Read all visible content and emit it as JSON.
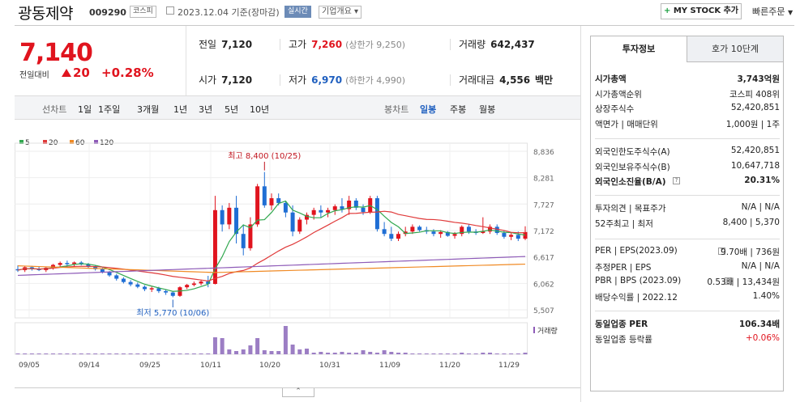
{
  "header": {
    "name": "광동제약",
    "code": "009290",
    "market": "코스피",
    "date": "2023.12.04 기준(장마감)",
    "live_label": "실시간",
    "company_info": "기업개요",
    "mystock": "MY STOCK 추가",
    "quick_order": "빠른주문"
  },
  "price": {
    "current": "7,140",
    "change_label": "전일대비",
    "change": "20",
    "change_pct": "+0.28%"
  },
  "quote": {
    "prev_label": "전일",
    "prev": "7,120",
    "high_label": "고가",
    "high": "7,260",
    "upper": "(상한가 9,250)",
    "volume_label": "거래량",
    "volume": "642,437",
    "open_label": "시가",
    "open": "7,120",
    "low_label": "저가",
    "low": "6,970",
    "lower": "(하한가 4,990)",
    "amount_label": "거래대금",
    "amount": "4,556",
    "amount_unit": "백만"
  },
  "periods": {
    "line": "선차트",
    "items": [
      "1일",
      "1주일",
      "3개월",
      "1년",
      "3년",
      "5년",
      "10년"
    ],
    "candle": "봉차트",
    "candle_items": [
      "일봉",
      "주봉",
      "월봉"
    ]
  },
  "colors": {
    "up": "#e0141e",
    "down": "#1f6ed4",
    "ma5": "#31a84f",
    "ma20": "#e03a3a",
    "ma60": "#f08a24",
    "ma120": "#8e5bb8"
  },
  "chart_data": {
    "type": "candlestick",
    "legend": [
      "5",
      "20",
      "60",
      "120"
    ],
    "y_ticks": [
      "8,836",
      "8,281",
      "7,727",
      "7,172",
      "6,617",
      "6,062",
      "5,507"
    ],
    "ylim": [
      5507,
      8836
    ],
    "x_ticks": [
      "09/05",
      "09/14",
      "09/25",
      "10/11",
      "10/20",
      "10/31",
      "11/09",
      "11/20",
      "11/29"
    ],
    "max_label": "최고 8,400 (10/25)",
    "min_label": "최저 5,770 (10/06)",
    "volume_label": "거래량"
  },
  "panel": {
    "tab1": "투자정보",
    "tab2": "호가 10단계",
    "rows1": [
      {
        "l": "시가총액",
        "r": "3,743억원",
        "bold": true
      },
      {
        "l": "시가총액순위",
        "r": "코스피 408위"
      },
      {
        "l": "상장주식수",
        "r": "52,420,851"
      },
      {
        "l": "액면가 | 매매단위",
        "r": "1,000원 | 1주"
      }
    ],
    "rows2": [
      {
        "l": "외국인한도주식수(A)",
        "r": "52,420,851"
      },
      {
        "l": "외국인보유주식수(B)",
        "r": "10,647,718"
      },
      {
        "l": "외국인소진율(B/A)",
        "r": "20.31%",
        "bold": true
      }
    ],
    "rows3": [
      {
        "l": "투자의견 | 목표주가",
        "r": "N/A | N/A"
      },
      {
        "l": "52주최고 | 최저",
        "r": "8,400 | 5,370"
      }
    ],
    "rows4": [
      {
        "l": "PER | EPS(2023.09)",
        "r": "9.70배 | 736원"
      },
      {
        "l": "추정PER | EPS",
        "r": "N/A | N/A"
      },
      {
        "l": "PBR | BPS (2023.09)",
        "r": "0.53배 | 13,434원"
      },
      {
        "l": "배당수익률 | 2022.12",
        "r": "1.40%"
      }
    ],
    "rows5": [
      {
        "l": "동일업종 PER",
        "r": "106.34배",
        "bold": true
      },
      {
        "l": "동일업종 등락률",
        "r": "+0.06%",
        "red": true
      }
    ]
  }
}
